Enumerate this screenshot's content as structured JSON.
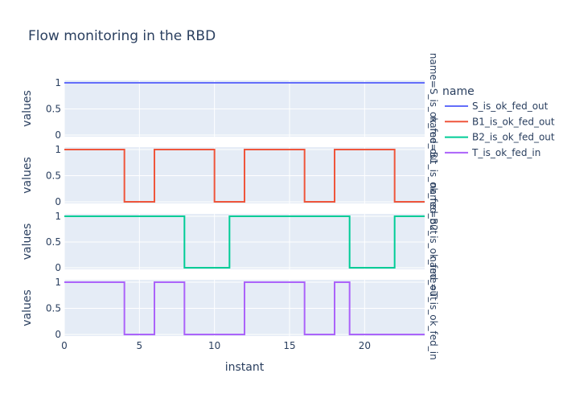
{
  "chart_data": {
    "type": "line",
    "line_shape": "step",
    "title": "Flow monitoring in the RBD",
    "xlabel": "instant",
    "ylabel": "values",
    "xlim": [
      0,
      24
    ],
    "ylim": [
      0,
      1
    ],
    "x_ticks": [
      0,
      5,
      10,
      15,
      20
    ],
    "y_ticks": [
      0,
      0.5,
      1
    ],
    "y_tick_labels": [
      "0",
      "0.5",
      "1"
    ],
    "legend": {
      "title": "name",
      "placement": "right"
    },
    "series": [
      {
        "name": "S_is_ok_fed_out",
        "color": "#636efa",
        "facet_label": "name=S_is_ok_fed_out",
        "x": [
          0,
          24
        ],
        "values": [
          1,
          1
        ]
      },
      {
        "name": "B1_is_ok_fed_out",
        "color": "#ef553b",
        "facet_label": "name=B1_is_ok_fed_out",
        "x": [
          0,
          4,
          6,
          10,
          12,
          16,
          18,
          22,
          24
        ],
        "values": [
          1,
          0,
          1,
          0,
          1,
          0,
          1,
          0,
          0
        ]
      },
      {
        "name": "B2_is_ok_fed_out",
        "color": "#00cc96",
        "facet_label": "name=B2_is_ok_fed_out",
        "x": [
          0,
          8,
          11,
          19,
          22,
          24
        ],
        "values": [
          1,
          0,
          1,
          0,
          1,
          1
        ]
      },
      {
        "name": "T_is_ok_fed_in",
        "color": "#ab63fa",
        "facet_label": "name=T_is_ok_fed_in",
        "x": [
          0,
          4,
          6,
          8,
          12,
          16,
          18,
          19,
          24
        ],
        "values": [
          1,
          0,
          1,
          0,
          1,
          0,
          1,
          0,
          0
        ]
      }
    ]
  }
}
